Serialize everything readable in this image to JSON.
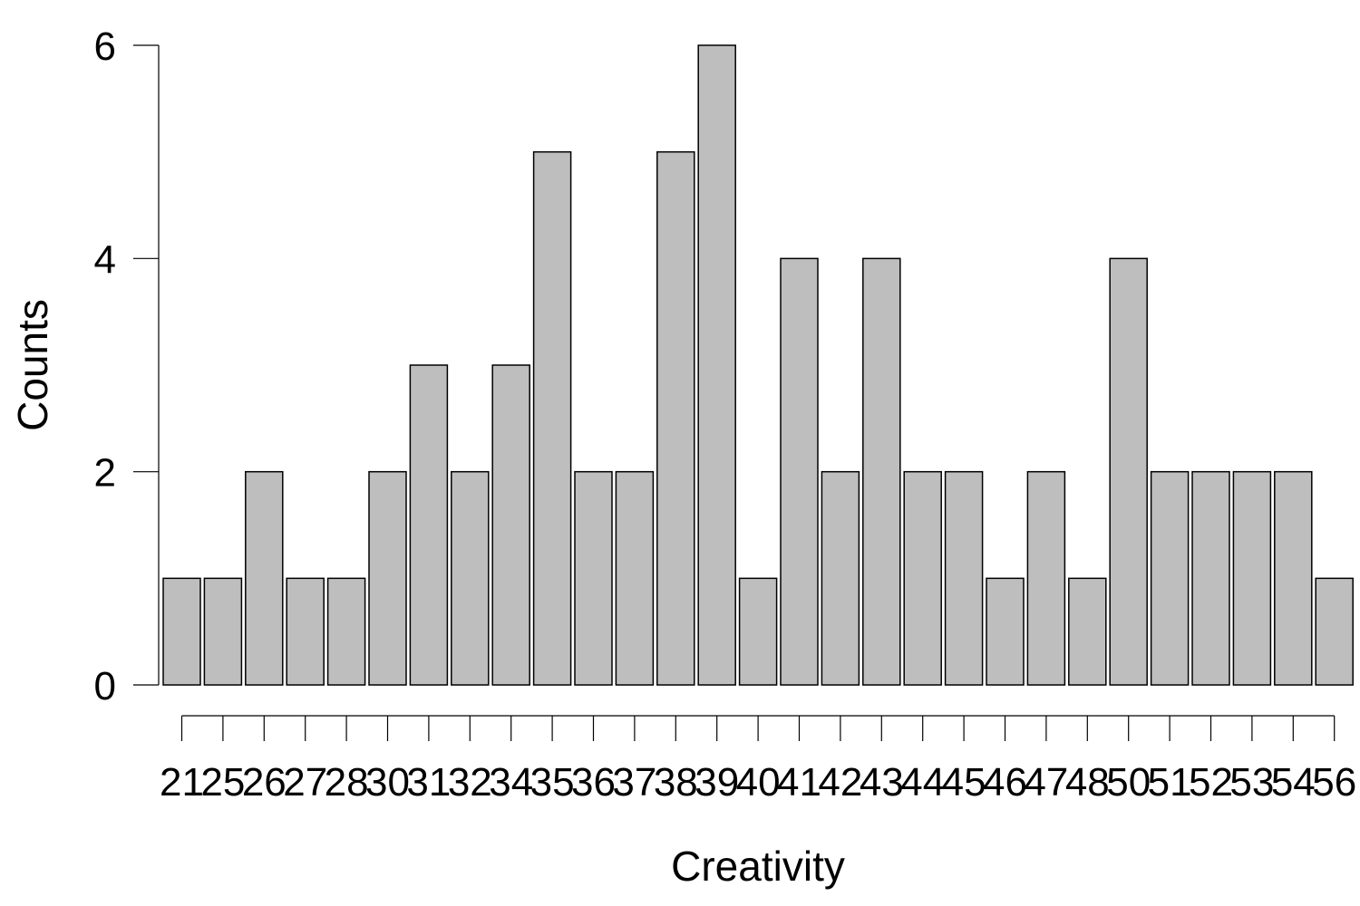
{
  "chart_data": {
    "type": "bar",
    "title": "",
    "xlabel": "Creativity",
    "ylabel": "Counts",
    "categories": [
      "21",
      "25",
      "26",
      "27",
      "28",
      "30",
      "31",
      "32",
      "34",
      "35",
      "36",
      "37",
      "38",
      "39",
      "40",
      "41",
      "42",
      "43",
      "44",
      "45",
      "46",
      "47",
      "48",
      "50",
      "51",
      "52",
      "53",
      "54",
      "56"
    ],
    "values": [
      1,
      1,
      2,
      1,
      1,
      2,
      3,
      2,
      3,
      5,
      2,
      2,
      5,
      6,
      1,
      4,
      2,
      4,
      2,
      2,
      1,
      2,
      1,
      4,
      2,
      2,
      2,
      2,
      1
    ],
    "y_ticks": [
      "0",
      "2",
      "4",
      "6"
    ],
    "ylim": [
      0,
      6
    ],
    "grid": false,
    "legend": "none",
    "colors": {
      "bar_fill": "#bebebe",
      "bar_stroke": "#000000",
      "axis": "#000000"
    }
  }
}
